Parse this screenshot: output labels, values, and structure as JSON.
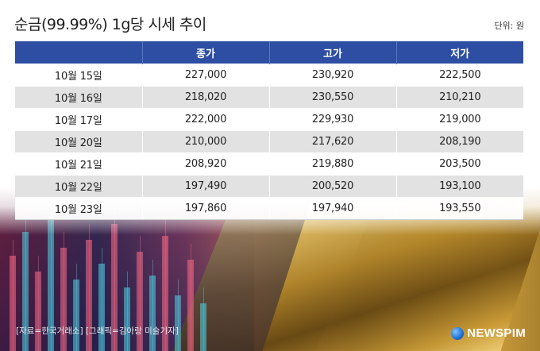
{
  "title": "순금(99.99%) 1g당 시세 추이",
  "unit_label": "단위: 원",
  "table": {
    "headers": [
      "",
      "종가",
      "고가",
      "저가"
    ],
    "rows": [
      {
        "date": "10월 15일",
        "close": "227,000",
        "high": "230,920",
        "low": "222,500"
      },
      {
        "date": "10월 16일",
        "close": "218,020",
        "high": "230,550",
        "low": "210,210"
      },
      {
        "date": "10월 17일",
        "close": "222,000",
        "high": "229,930",
        "low": "219,000"
      },
      {
        "date": "10월 20일",
        "close": "210,000",
        "high": "217,620",
        "low": "208,190"
      },
      {
        "date": "10월 21일",
        "close": "208,920",
        "high": "219,880",
        "low": "203,500"
      },
      {
        "date": "10월 22일",
        "close": "197,490",
        "high": "200,520",
        "low": "193,100"
      },
      {
        "date": "10월 23일",
        "close": "197,860",
        "high": "197,940",
        "low": "193,550"
      }
    ]
  },
  "credit": "[자료=한국거래소] [그래픽=김아랑 미술기자]",
  "logo_text": "NEWSPIM",
  "colors": {
    "header_bg": "#2d4ea2",
    "stripe": "#e2e2e2"
  }
}
